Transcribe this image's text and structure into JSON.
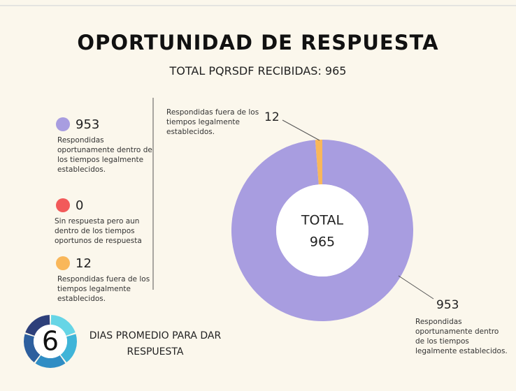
{
  "chart_data": {
    "type": "donut",
    "title": "OPORTUNIDAD DE RESPUESTA",
    "subtitle": "TOTAL PQRSDF RECIBIDAS: 965",
    "categories": [
      "Respondidas oportunamente dentro de los tiempos legalmente establecidos.",
      "Sin respuesta pero aun dentro de los tiempos oportunos de respuesta",
      "Respondidas fuera de los tiempos legalmente establecidos."
    ],
    "values": [
      953,
      0,
      12
    ],
    "colors": [
      "#a89de0",
      "#f25a5a",
      "#f9b75a"
    ],
    "center_label": "TOTAL",
    "total": 965,
    "average_days": {
      "value": 6,
      "label": "DIAS PROMEDIO PARA DAR RESPUESTA"
    }
  }
}
